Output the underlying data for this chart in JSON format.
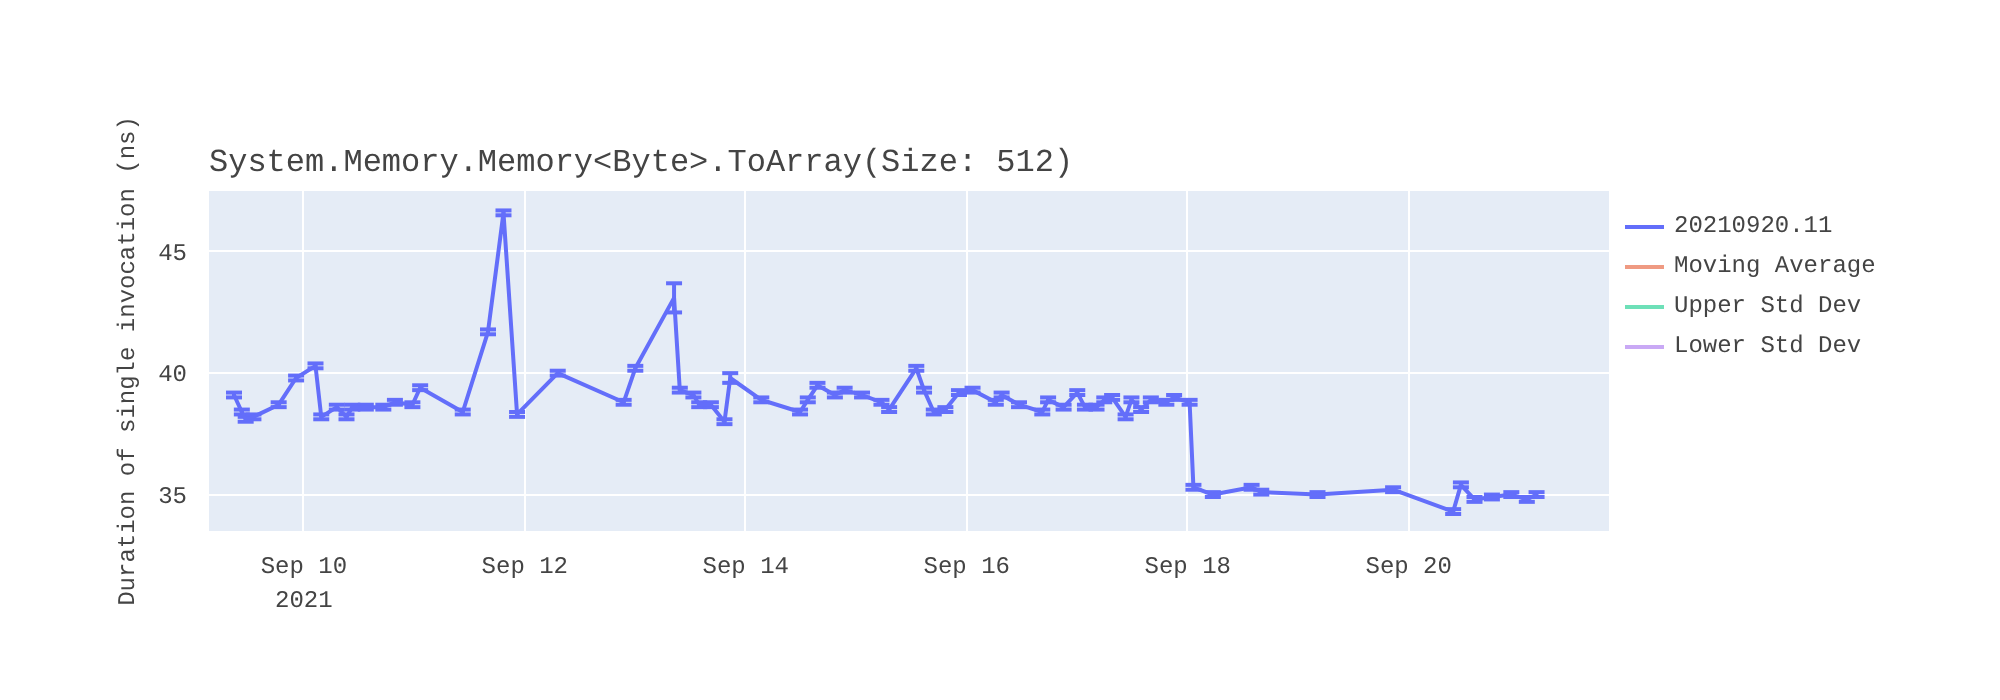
{
  "chart_data": {
    "type": "line",
    "title": "System.Memory.Memory<Byte>.ToArray(Size: 512)",
    "ylabel": "Duration of single invocation (ns)",
    "xlim": [
      "2021-09-09T03:24",
      "2021-09-21T19:30"
    ],
    "xticks": [
      {
        "value": "2021-09-10",
        "label": "Sep 10\n2021"
      },
      {
        "value": "2021-09-12",
        "label": "Sep 12"
      },
      {
        "value": "2021-09-14",
        "label": "Sep 14"
      },
      {
        "value": "2021-09-16",
        "label": "Sep 16"
      },
      {
        "value": "2021-09-18",
        "label": "Sep 18"
      },
      {
        "value": "2021-09-20",
        "label": "Sep 20"
      }
    ],
    "ylim": [
      33.5,
      47.5
    ],
    "yticks": [
      35,
      40,
      45
    ],
    "grid": true,
    "legend": "top right",
    "marker": "none",
    "line_style": "solid",
    "x": [
      "2021-09-09T08:50",
      "2021-09-09T10:32",
      "2021-09-09T11:22",
      "2021-09-09T13:03",
      "2021-09-09T18:32",
      "2021-09-09T22:19",
      "2021-09-10T02:32",
      "2021-09-10T03:47",
      "2021-09-10T07:10",
      "2021-09-10T09:16",
      "2021-09-10T10:32",
      "2021-09-10T13:28",
      "2021-09-10T17:16",
      "2021-09-10T19:47",
      "2021-09-10T23:35",
      "2021-09-11T01:16",
      "2021-09-11T10:31",
      "2021-09-11T16:00",
      "2021-09-11T19:22",
      "2021-09-11T22:19",
      "2021-09-12T07:09",
      "2021-09-12T21:28",
      "2021-09-13T00:00",
      "2021-09-13T08:25",
      "2021-09-13T09:40",
      "2021-09-13T12:37",
      "2021-09-13T13:53",
      "2021-09-13T16:25",
      "2021-09-13T19:22",
      "2021-09-13T20:37",
      "2021-09-14T03:22",
      "2021-09-14T11:47",
      "2021-09-14T13:28",
      "2021-09-14T15:34",
      "2021-09-14T19:21",
      "2021-09-14T21:28",
      "2021-09-15T01:15",
      "2021-09-15T05:28",
      "2021-09-15T07:08",
      "2021-09-15T13:02",
      "2021-09-15T14:43",
      "2021-09-15T16:50",
      "2021-09-15T19:21",
      "2021-09-15T22:18",
      "2021-09-16T01:15",
      "2021-09-16T06:18",
      "2021-09-16T07:34",
      "2021-09-16T11:21",
      "2021-09-16T16:24",
      "2021-09-16T17:40",
      "2021-09-16T21:02",
      "2021-09-17T00:00",
      "2021-09-17T01:40",
      "2021-09-17T04:11",
      "2021-09-17T05:52",
      "2021-09-17T07:34",
      "2021-09-17T10:30",
      "2021-09-17T11:46",
      "2021-09-17T13:52",
      "2021-09-17T15:59",
      "2021-09-17T19:21",
      "2021-09-17T21:02",
      "2021-09-18T00:24",
      "2021-09-18T01:14",
      "2021-09-18T05:27",
      "2021-09-18T13:52",
      "2021-09-18T15:58",
      "2021-09-19T04:11",
      "2021-09-19T20:36",
      "2021-09-20T09:39",
      "2021-09-20T11:20",
      "2021-09-20T14:17",
      "2021-09-20T18:04",
      "2021-09-20T22:17",
      "2021-09-21T01:39",
      "2021-09-21T03:46"
    ],
    "series": [
      {
        "name": "20210920.11",
        "color": "#636efa",
        "values": [
          39.1,
          38.4,
          38.1,
          38.2,
          38.7,
          39.8,
          40.3,
          38.2,
          38.6,
          38.2,
          38.6,
          38.6,
          38.6,
          38.8,
          38.7,
          39.4,
          38.4,
          41.7,
          46.6,
          38.3,
          40.0,
          38.8,
          40.2,
          43.1,
          39.3,
          39.1,
          38.7,
          38.7,
          38.0,
          39.8,
          38.9,
          38.4,
          38.9,
          39.5,
          39.1,
          39.3,
          39.1,
          38.8,
          38.5,
          40.2,
          39.3,
          38.4,
          38.5,
          39.2,
          39.3,
          38.8,
          39.1,
          38.7,
          38.4,
          38.9,
          38.6,
          39.2,
          38.6,
          38.6,
          38.9,
          39.0,
          38.2,
          38.9,
          38.5,
          38.9,
          38.8,
          39.0,
          38.8,
          35.3,
          35.0,
          35.3,
          35.1,
          35.0,
          35.2,
          34.3,
          35.4,
          34.8,
          34.9,
          35.0,
          34.8,
          35.0
        ],
        "errors": [
          0.1,
          0.1,
          0.1,
          0.1,
          0.1,
          0.1,
          0.1,
          0.1,
          0.1,
          0.1,
          0.1,
          0.1,
          0.1,
          0.1,
          0.1,
          0.1,
          0.1,
          0.1,
          0.1,
          0.1,
          0.1,
          0.1,
          0.1,
          0.6,
          0.1,
          0.1,
          0.1,
          0.1,
          0.1,
          0.2,
          0.1,
          0.1,
          0.1,
          0.1,
          0.1,
          0.1,
          0.1,
          0.1,
          0.1,
          0.1,
          0.1,
          0.1,
          0.1,
          0.1,
          0.1,
          0.1,
          0.1,
          0.1,
          0.1,
          0.1,
          0.1,
          0.1,
          0.1,
          0.1,
          0.1,
          0.1,
          0.1,
          0.1,
          0.1,
          0.1,
          0.1,
          0.1,
          0.1,
          0.1,
          0.1,
          0.1,
          0.1,
          0.1,
          0.1,
          0.1,
          0.1,
          0.1,
          0.1,
          0.1,
          0.1,
          0.1
        ]
      },
      {
        "name": "Moving Average",
        "color": "#ef9a82",
        "values": [
          null,
          null,
          null,
          null,
          null,
          null,
          null,
          null,
          null,
          null,
          null,
          null,
          null,
          null,
          null,
          null,
          null,
          null,
          null,
          null,
          null,
          null,
          null,
          null,
          null,
          null,
          null,
          null,
          null,
          null,
          null,
          null,
          null,
          null,
          null,
          null,
          null,
          null,
          null,
          null,
          null,
          null,
          null,
          null,
          null,
          null,
          null,
          null,
          null,
          null,
          null,
          null,
          null,
          null,
          null,
          null,
          null,
          null,
          null,
          null,
          null,
          null,
          null,
          null,
          null,
          null,
          null,
          null,
          null,
          null,
          null,
          null,
          null,
          null,
          null,
          null
        ]
      },
      {
        "name": "Upper Std Dev",
        "color": "#6ee0b8",
        "values": [
          null,
          null,
          null,
          null,
          null,
          null,
          null,
          null,
          null,
          null,
          null,
          null,
          null,
          null,
          null,
          null,
          null,
          null,
          null,
          null,
          null,
          null,
          null,
          null,
          null,
          null,
          null,
          null,
          null,
          null,
          null,
          null,
          null,
          null,
          null,
          null,
          null,
          null,
          null,
          null,
          null,
          null,
          null,
          null,
          null,
          null,
          null,
          null,
          null,
          null,
          null,
          null,
          null,
          null,
          null,
          null,
          null,
          null,
          null,
          null,
          null,
          null,
          null,
          null,
          null,
          null,
          null,
          null,
          null,
          null,
          null,
          null,
          null,
          null,
          null,
          null
        ]
      },
      {
        "name": "Lower Std Dev",
        "color": "#c9a9f5",
        "values": [
          null,
          null,
          null,
          null,
          null,
          null,
          null,
          null,
          null,
          null,
          null,
          null,
          null,
          null,
          null,
          null,
          null,
          null,
          null,
          null,
          null,
          null,
          null,
          null,
          null,
          null,
          null,
          null,
          null,
          null,
          null,
          null,
          null,
          null,
          null,
          null,
          null,
          null,
          null,
          null,
          null,
          null,
          null,
          null,
          null,
          null,
          null,
          null,
          null,
          null,
          null,
          null,
          null,
          null,
          null,
          null,
          null,
          null,
          null,
          null,
          null,
          null,
          null,
          null,
          null,
          null,
          null,
          null,
          null,
          null,
          null,
          null,
          null,
          null,
          null,
          null
        ]
      }
    ]
  }
}
